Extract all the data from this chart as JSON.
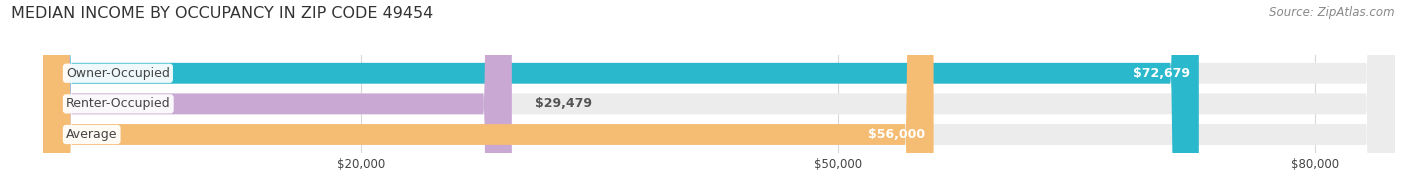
{
  "title": "MEDIAN INCOME BY OCCUPANCY IN ZIP CODE 49454",
  "source": "Source: ZipAtlas.com",
  "categories": [
    "Owner-Occupied",
    "Renter-Occupied",
    "Average"
  ],
  "values": [
    72679,
    29479,
    56000
  ],
  "bar_colors": [
    "#2ab8cc",
    "#c9a8d4",
    "#f5bc74"
  ],
  "bar_bg_color": "#ececec",
  "label_texts": [
    "$72,679",
    "$29,479",
    "$56,000"
  ],
  "tick_labels": [
    "$20,000",
    "$50,000",
    "$80,000"
  ],
  "tick_values": [
    20000,
    50000,
    80000
  ],
  "xlim_min": -2000,
  "xlim_max": 85000,
  "data_min": 0,
  "data_max": 85000,
  "title_fontsize": 11.5,
  "source_fontsize": 8.5,
  "bar_label_fontsize": 9,
  "category_fontsize": 9,
  "tick_fontsize": 8.5,
  "background_color": "#ffffff",
  "bar_height": 0.68,
  "label_color_inside": "#ffffff",
  "label_color_outside": "#555555",
  "grid_color": "#d8d8d8",
  "text_color": "#444444",
  "source_color": "#888888",
  "title_color": "#333333"
}
